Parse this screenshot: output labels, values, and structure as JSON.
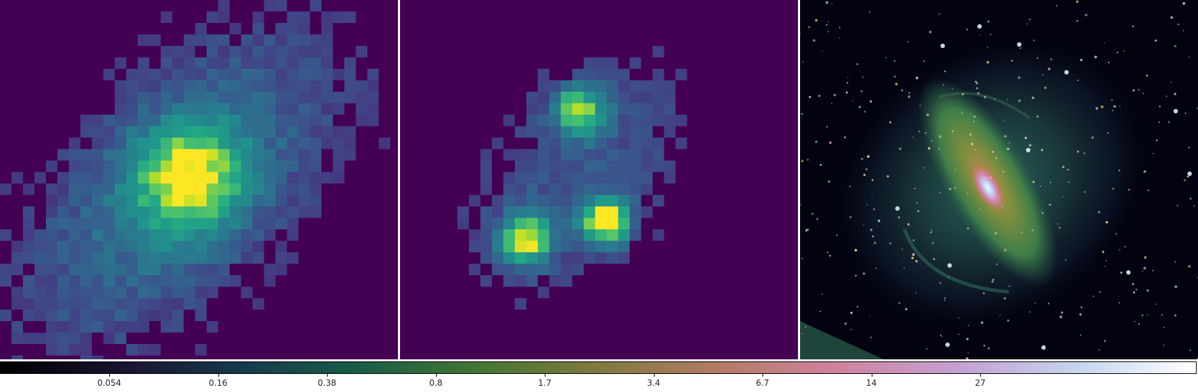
{
  "figure": {
    "panels": [
      {
        "name": "single-source-map",
        "colormap": "viridis"
      },
      {
        "name": "three-source-map",
        "colormap": "viridis"
      },
      {
        "name": "galaxy-image",
        "colormap": "cubehelix"
      }
    ]
  },
  "colorbar": {
    "colormap": "cubehelix",
    "scale": "log",
    "ticks": [
      "0.054",
      "0.16",
      "0.38",
      "0.8",
      "1.7",
      "3.4",
      "6.7",
      "14",
      "27"
    ]
  }
}
